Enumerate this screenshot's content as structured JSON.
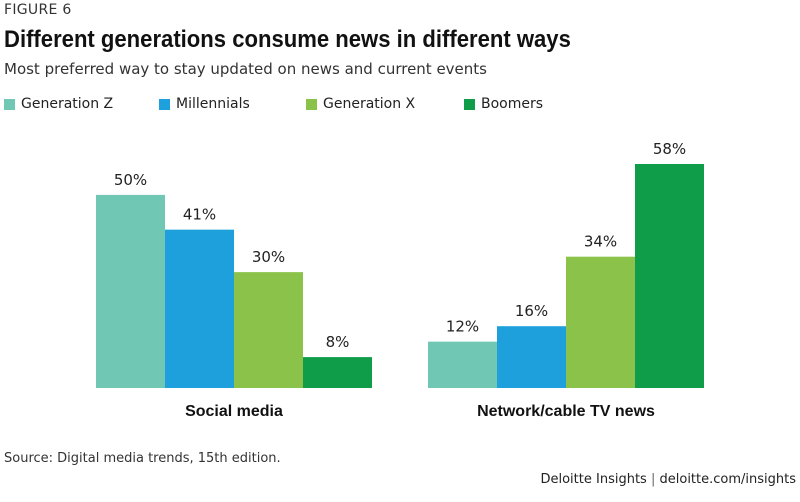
{
  "header": {
    "figure_label": "FIGURE 6",
    "title": "Different generations consume news in different ways",
    "subtitle": "Most preferred way to stay updated on news and current events"
  },
  "footer": {
    "source": "Source: Digital media trends, 15th edition.",
    "brand": "Deloitte Insights",
    "separator": "|",
    "site": "deloitte.com/insights"
  },
  "chart_data": {
    "type": "bar",
    "categories": [
      "Social media",
      "Network/cable TV news"
    ],
    "series": [
      {
        "name": "Generation Z",
        "color": "#6fc7b4",
        "values": [
          50,
          12
        ]
      },
      {
        "name": "Millennials",
        "color": "#1ea0dc",
        "values": [
          41,
          16
        ]
      },
      {
        "name": "Generation X",
        "color": "#8bc34a",
        "values": [
          30,
          34
        ]
      },
      {
        "name": "Boomers",
        "color": "#0f9d4a",
        "values": [
          8,
          58
        ]
      }
    ],
    "value_suffix": "%",
    "ylim": [
      0,
      58
    ],
    "grid": false,
    "legend_position": "top-left",
    "xlabel": "",
    "ylabel": ""
  }
}
